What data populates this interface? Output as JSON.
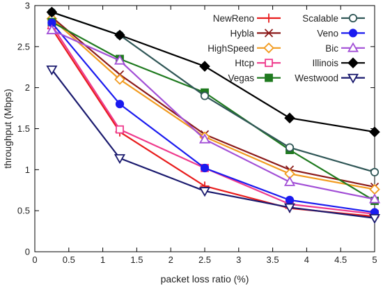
{
  "chart_data": {
    "type": "line",
    "xlabel": "packet loss ratio (%)",
    "ylabel": "throughput (Mbps)",
    "xlim": [
      0,
      5
    ],
    "ylim": [
      0,
      3
    ],
    "xticks": [
      0,
      0.5,
      1,
      1.5,
      2,
      2.5,
      3,
      3.5,
      4,
      4.5,
      5
    ],
    "yticks": [
      0,
      0.5,
      1,
      1.5,
      2,
      2.5,
      3
    ],
    "x": [
      0.25,
      1.25,
      2.5,
      3.75,
      5
    ],
    "grid": false,
    "legend_position": "top-right",
    "series": [
      {
        "name": "NewReno",
        "color": "#e81c1c",
        "marker": "plus",
        "values": [
          2.72,
          1.46,
          0.8,
          0.53,
          0.43
        ]
      },
      {
        "name": "Hybla",
        "color": "#8b1a1a",
        "marker": "x",
        "values": [
          2.86,
          2.16,
          1.43,
          1.0,
          0.79
        ]
      },
      {
        "name": "HighSpeed",
        "color": "#f29b1f",
        "marker": "diamond-open",
        "values": [
          2.84,
          2.1,
          1.4,
          0.95,
          0.76
        ]
      },
      {
        "name": "Htcp",
        "color": "#ef3a8c",
        "marker": "square-open",
        "values": [
          2.76,
          1.49,
          1.02,
          0.58,
          0.46
        ]
      },
      {
        "name": "Vegas",
        "color": "#1f7a1f",
        "marker": "square-filled",
        "values": [
          2.8,
          2.35,
          1.94,
          1.24,
          0.62
        ]
      },
      {
        "name": "Scalable",
        "color": "#2f5656",
        "marker": "circle-open",
        "values": [
          2.92,
          2.64,
          1.9,
          1.27,
          0.97
        ]
      },
      {
        "name": "Veno",
        "color": "#1a1aef",
        "marker": "circle-filled",
        "values": [
          2.79,
          1.8,
          1.02,
          0.63,
          0.48
        ]
      },
      {
        "name": "Bic",
        "color": "#a24fd6",
        "marker": "triangle-open",
        "values": [
          2.7,
          2.33,
          1.37,
          0.85,
          0.64
        ]
      },
      {
        "name": "Illinois",
        "color": "#000000",
        "marker": "diamond-filled",
        "values": [
          2.92,
          2.64,
          2.26,
          1.63,
          1.46
        ]
      },
      {
        "name": "Westwood",
        "color": "#1a1a6e",
        "marker": "triangle-down-open",
        "values": [
          2.22,
          1.14,
          0.74,
          0.54,
          0.41
        ]
      }
    ]
  }
}
